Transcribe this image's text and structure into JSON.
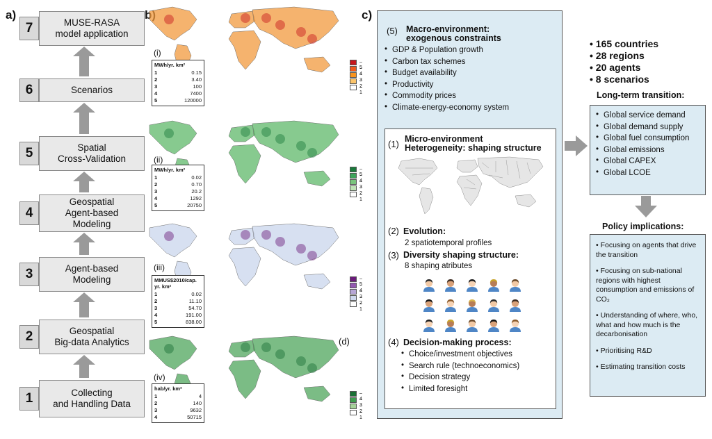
{
  "panel_a": {
    "label": "a)",
    "steps": [
      {
        "num": "7",
        "text": "MUSE-RASA\nmodel application"
      },
      {
        "num": "6",
        "text": "Scenarios"
      },
      {
        "num": "5",
        "text": "Spatial\nCross-Validation"
      },
      {
        "num": "4",
        "text": "Geospatial\nAgent-based\nModeling"
      },
      {
        "num": "3",
        "text": "Agent-based\nModeling"
      },
      {
        "num": "2",
        "text": "Geospatial\nBig-data Analytics"
      },
      {
        "num": "1",
        "text": "Collecting\nand Handling Data"
      }
    ]
  },
  "panel_b": {
    "label": "b)",
    "maps": [
      {
        "roman": "(i)",
        "unit": "MWh/yr. km²",
        "rows": [
          [
            "1",
            "0.15"
          ],
          [
            "2",
            "3.40"
          ],
          [
            "3",
            "100"
          ],
          [
            "4",
            "7400"
          ],
          [
            "5",
            "120000"
          ]
        ],
        "scale": [
          "5",
          "4",
          "3",
          "2",
          "1"
        ],
        "colors": [
          "#c7171d",
          "#ef5a1e",
          "#f7931e",
          "#fbc46a",
          "#ffffff"
        ],
        "map_color": "#f19a3e"
      },
      {
        "roman": "(ii)",
        "unit": "MWh/yr. km²",
        "rows": [
          [
            "1",
            "0.02"
          ],
          [
            "2",
            "0.70"
          ],
          [
            "3",
            "20.2"
          ],
          [
            "4",
            "1292"
          ],
          [
            "5",
            "20750"
          ]
        ],
        "scale": [
          "5",
          "4",
          "3",
          "2",
          "1"
        ],
        "colors": [
          "#1a7a3b",
          "#3ea55b",
          "#79c57c",
          "#bfe3b6",
          "#ffffff"
        ],
        "map_color": "#5fb86a"
      },
      {
        "roman": "(iii)",
        "unit": "MMUS$2010/cap. yr. km²",
        "rows": [
          [
            "1",
            "0.02"
          ],
          [
            "2",
            "11.10"
          ],
          [
            "3",
            "54.70"
          ],
          [
            "4",
            "191.00"
          ],
          [
            "5",
            "838.00"
          ]
        ],
        "scale": [
          "5",
          "4",
          "3",
          "2",
          "1"
        ],
        "colors": [
          "#6a1b7a",
          "#9358b0",
          "#b7a6d6",
          "#cfd8ee",
          "#ffffff"
        ],
        "map_color": "#c9d6ec"
      },
      {
        "roman": "(iv)",
        "unit": "hab/yr. km²",
        "rows": [
          [
            "1",
            "4"
          ],
          [
            "2",
            "140"
          ],
          [
            "3",
            "9632"
          ],
          [
            "4",
            "50715"
          ]
        ],
        "scale": [
          "4",
          "3",
          "2",
          "1"
        ],
        "colors": [
          "#1a6f35",
          "#3f9e4f",
          "#a6d39a",
          "#ffffff"
        ],
        "map_color": "#4fa65c"
      }
    ],
    "d_label": "(d)"
  },
  "panel_c": {
    "label": "c)",
    "macro": {
      "num": "(5)",
      "title": "Macro-environment:\nexogenous constraints",
      "items": [
        "GDP & Population growth",
        "Carbon tax schemes",
        "Budget availability",
        "Productivity",
        "Commodity prices",
        "Climate-energy-economy system"
      ]
    },
    "micro": {
      "num": "(1)",
      "title": "Micro-environment\nHeterogeneity: shaping structure"
    },
    "evolution": {
      "num": "(2)",
      "title": "Evolution:",
      "sub": "2 spatiotemporal profiles"
    },
    "diversity": {
      "num": "(3)",
      "title": "Diversity shaping structure:",
      "sub": "8 shaping atributes"
    },
    "decision": {
      "num": "(4)",
      "title": "Decision-making process:",
      "items": [
        "Choice/investment objectives",
        "Search rule (technoeconomics)",
        "Decision strategy",
        "Limited foresight"
      ]
    }
  },
  "right": {
    "stats": [
      "165 countries",
      "28 regions",
      "20 agents",
      "8 scenarios"
    ],
    "transition_title": "Long-term transition:",
    "transition_items": [
      "Global service demand",
      "Global demand supply",
      "Global fuel consumption",
      "Global emissions",
      "Global CAPEX",
      "Global LCOE"
    ],
    "policy_title": "Policy implications:",
    "policy_items": [
      "Focusing on agents that drive the transition",
      "Focusing on sub-national regions with highest consumption and emissions of CO₂",
      "Understanding of where, who, what and how much is the decarbonisation",
      "Prioritising R&D",
      "Estimating transition costs"
    ]
  }
}
